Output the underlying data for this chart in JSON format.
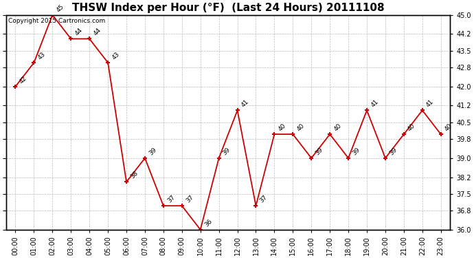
{
  "title": "THSW Index per Hour (°F)  (Last 24 Hours) 20111108",
  "copyright": "Copyright 2015 Cartronics.com",
  "hours": [
    "00:00",
    "01:00",
    "02:00",
    "03:00",
    "04:00",
    "05:00",
    "06:00",
    "07:00",
    "08:00",
    "09:00",
    "10:00",
    "11:00",
    "12:00",
    "13:00",
    "14:00",
    "15:00",
    "16:00",
    "17:00",
    "18:00",
    "19:00",
    "20:00",
    "21:00",
    "22:00",
    "23:00"
  ],
  "values": [
    42,
    43,
    45,
    44,
    44,
    43,
    38,
    39,
    37,
    37,
    36,
    39,
    41,
    37,
    40,
    40,
    39,
    40,
    39,
    41,
    39,
    40,
    41,
    40
  ],
  "ylim_min": 36.0,
  "ylim_max": 45.0,
  "yticks": [
    36.0,
    36.8,
    37.5,
    38.2,
    39.0,
    39.8,
    40.5,
    41.2,
    42.0,
    42.8,
    43.5,
    44.2,
    45.0
  ],
  "line_color": "#cc0000",
  "marker_color": "#cc0000",
  "bg_color": "#ffffff",
  "grid_color": "#bbbbbb",
  "title_fontsize": 11,
  "label_fontsize": 7,
  "annot_fontsize": 6.5,
  "copyright_fontsize": 6.5
}
